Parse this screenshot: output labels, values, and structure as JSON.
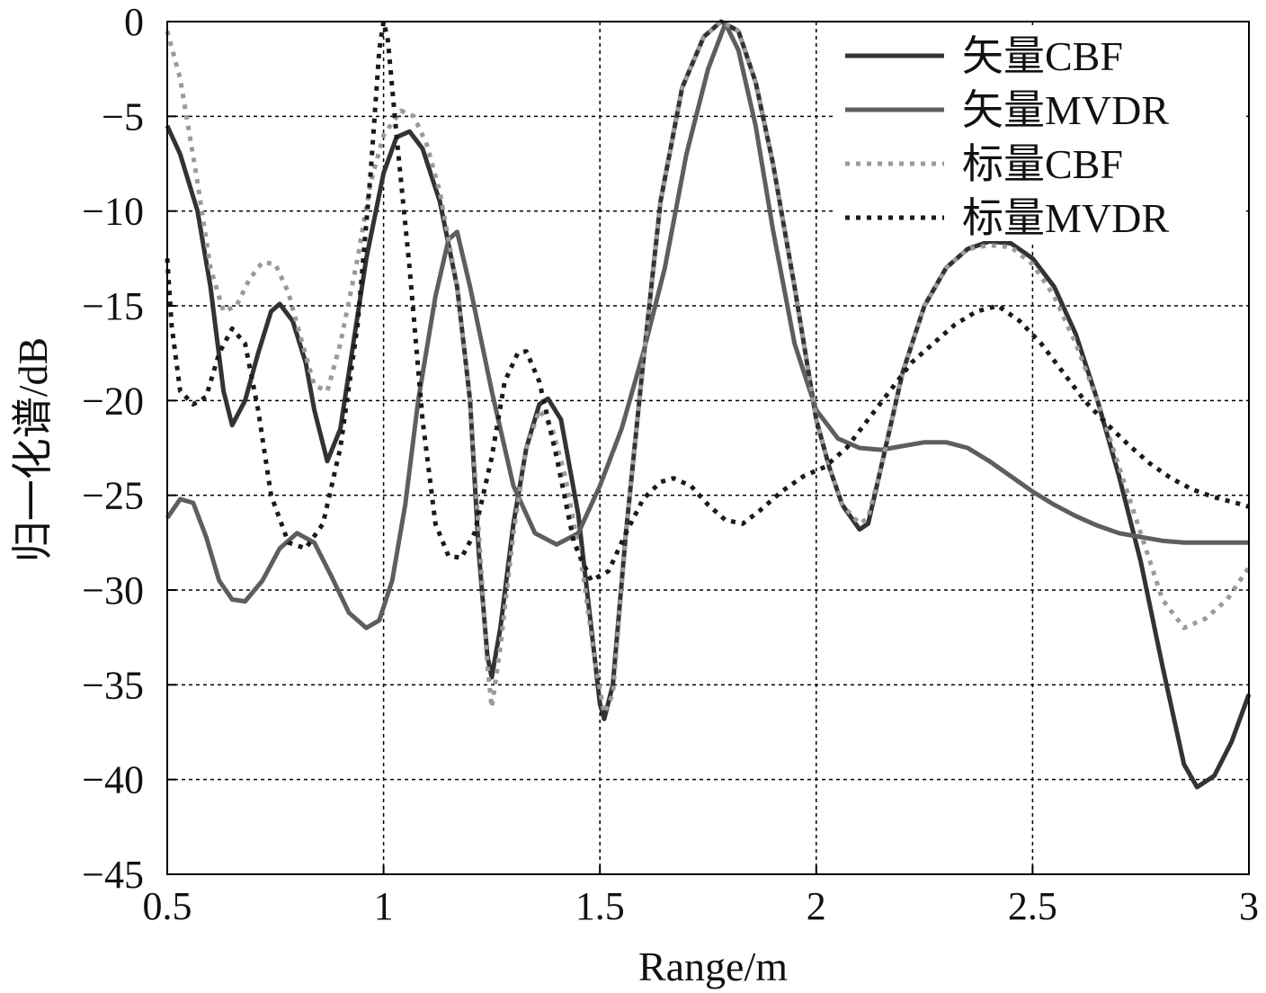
{
  "chart_data": {
    "type": "line",
    "title": "",
    "xlabel": "Range/m",
    "ylabel": "归一化谱/dB",
    "xlim": [
      0.5,
      3
    ],
    "ylim": [
      -45,
      0
    ],
    "xticks": [
      0.5,
      1,
      1.5,
      2,
      2.5,
      3
    ],
    "xtick_labels": [
      "0.5",
      "1",
      "1.5",
      "2",
      "2.5",
      "3"
    ],
    "yticks": [
      0,
      -5,
      -10,
      -15,
      -20,
      -25,
      -30,
      -35,
      -40,
      -45
    ],
    "ytick_labels": [
      "0",
      "−5",
      "−10",
      "−15",
      "−20",
      "−25",
      "−30",
      "−35",
      "−40",
      "−45"
    ],
    "grid": true,
    "legend_position": "top-right",
    "series": [
      {
        "name": "矢量CBF",
        "color": "#333333",
        "dash": "solid",
        "points": [
          [
            0.5,
            -5.5
          ],
          [
            0.53,
            -7
          ],
          [
            0.57,
            -10
          ],
          [
            0.6,
            -14
          ],
          [
            0.63,
            -19.5
          ],
          [
            0.65,
            -21.3
          ],
          [
            0.68,
            -20
          ],
          [
            0.71,
            -17.5
          ],
          [
            0.74,
            -15.3
          ],
          [
            0.76,
            -14.9
          ],
          [
            0.79,
            -15.8
          ],
          [
            0.82,
            -18
          ],
          [
            0.84,
            -20.5
          ],
          [
            0.87,
            -23.2
          ],
          [
            0.9,
            -21.5
          ],
          [
            0.93,
            -17
          ],
          [
            0.96,
            -12.5
          ],
          [
            1.0,
            -8
          ],
          [
            1.03,
            -6.1
          ],
          [
            1.06,
            -5.8
          ],
          [
            1.09,
            -6.7
          ],
          [
            1.13,
            -9.5
          ],
          [
            1.17,
            -14
          ],
          [
            1.2,
            -20
          ],
          [
            1.22,
            -28
          ],
          [
            1.24,
            -33.5
          ],
          [
            1.25,
            -34.6
          ],
          [
            1.27,
            -32
          ],
          [
            1.3,
            -26.5
          ],
          [
            1.33,
            -22.5
          ],
          [
            1.36,
            -20.2
          ],
          [
            1.38,
            -19.9
          ],
          [
            1.41,
            -21
          ],
          [
            1.45,
            -26
          ],
          [
            1.48,
            -32
          ],
          [
            1.5,
            -36
          ],
          [
            1.51,
            -36.8
          ],
          [
            1.53,
            -35
          ],
          [
            1.56,
            -27
          ],
          [
            1.6,
            -18
          ],
          [
            1.64,
            -9.5
          ],
          [
            1.69,
            -3.5
          ],
          [
            1.74,
            -0.8
          ],
          [
            1.78,
            0
          ],
          [
            1.82,
            -0.5
          ],
          [
            1.86,
            -3.2
          ],
          [
            1.9,
            -7.5
          ],
          [
            1.95,
            -14
          ],
          [
            2.0,
            -21
          ],
          [
            2.03,
            -23.5
          ],
          [
            2.06,
            -25.5
          ],
          [
            2.1,
            -26.8
          ],
          [
            2.12,
            -26.5
          ],
          [
            2.15,
            -23.5
          ],
          [
            2.2,
            -18.5
          ],
          [
            2.25,
            -15
          ],
          [
            2.3,
            -13
          ],
          [
            2.35,
            -12
          ],
          [
            2.4,
            -11.6
          ],
          [
            2.45,
            -11.7
          ],
          [
            2.5,
            -12.5
          ],
          [
            2.55,
            -14
          ],
          [
            2.6,
            -16.5
          ],
          [
            2.65,
            -20
          ],
          [
            2.7,
            -24
          ],
          [
            2.75,
            -28.5
          ],
          [
            2.8,
            -34
          ],
          [
            2.85,
            -39.2
          ],
          [
            2.88,
            -40.4
          ],
          [
            2.92,
            -39.8
          ],
          [
            2.96,
            -38
          ],
          [
            3.0,
            -35.5
          ]
        ]
      },
      {
        "name": "矢量MVDR",
        "color": "#5e5e5e",
        "dash": "solid",
        "points": [
          [
            0.5,
            -26.2
          ],
          [
            0.53,
            -25.2
          ],
          [
            0.56,
            -25.4
          ],
          [
            0.59,
            -27.2
          ],
          [
            0.62,
            -29.5
          ],
          [
            0.65,
            -30.5
          ],
          [
            0.68,
            -30.6
          ],
          [
            0.72,
            -29.5
          ],
          [
            0.76,
            -27.8
          ],
          [
            0.8,
            -27
          ],
          [
            0.84,
            -27.5
          ],
          [
            0.88,
            -29.3
          ],
          [
            0.92,
            -31.2
          ],
          [
            0.96,
            -32
          ],
          [
            0.99,
            -31.6
          ],
          [
            1.02,
            -29.5
          ],
          [
            1.05,
            -25.5
          ],
          [
            1.08,
            -20
          ],
          [
            1.12,
            -14.5
          ],
          [
            1.15,
            -11.5
          ],
          [
            1.17,
            -11.1
          ],
          [
            1.2,
            -14
          ],
          [
            1.25,
            -19.5
          ],
          [
            1.3,
            -24.5
          ],
          [
            1.35,
            -27
          ],
          [
            1.4,
            -27.6
          ],
          [
            1.45,
            -27
          ],
          [
            1.5,
            -24.5
          ],
          [
            1.55,
            -21.5
          ],
          [
            1.6,
            -17.5
          ],
          [
            1.65,
            -13
          ],
          [
            1.7,
            -7
          ],
          [
            1.75,
            -2.5
          ],
          [
            1.79,
            -0.1
          ],
          [
            1.82,
            -1.5
          ],
          [
            1.86,
            -5.5
          ],
          [
            1.9,
            -11
          ],
          [
            1.95,
            -17
          ],
          [
            2.0,
            -20.5
          ],
          [
            2.05,
            -22
          ],
          [
            2.1,
            -22.5
          ],
          [
            2.15,
            -22.6
          ],
          [
            2.2,
            -22.4
          ],
          [
            2.25,
            -22.2
          ],
          [
            2.3,
            -22.2
          ],
          [
            2.35,
            -22.5
          ],
          [
            2.4,
            -23.2
          ],
          [
            2.45,
            -24
          ],
          [
            2.5,
            -24.8
          ],
          [
            2.55,
            -25.5
          ],
          [
            2.6,
            -26.1
          ],
          [
            2.65,
            -26.6
          ],
          [
            2.7,
            -27
          ],
          [
            2.75,
            -27.2
          ],
          [
            2.8,
            -27.4
          ],
          [
            2.85,
            -27.5
          ],
          [
            2.9,
            -27.5
          ],
          [
            2.95,
            -27.5
          ],
          [
            3.0,
            -27.5
          ]
        ]
      },
      {
        "name": "标量CBF",
        "color": "#9a9a9a",
        "dash": "dotted",
        "points": [
          [
            0.5,
            -0.5
          ],
          [
            0.53,
            -3
          ],
          [
            0.57,
            -8.5
          ],
          [
            0.6,
            -13
          ],
          [
            0.63,
            -15.3
          ],
          [
            0.66,
            -15
          ],
          [
            0.69,
            -13.6
          ],
          [
            0.72,
            -12.7
          ],
          [
            0.75,
            -12.8
          ],
          [
            0.78,
            -14.3
          ],
          [
            0.81,
            -16.8
          ],
          [
            0.84,
            -19.2
          ],
          [
            0.87,
            -19.5
          ],
          [
            0.9,
            -17
          ],
          [
            0.94,
            -12.5
          ],
          [
            0.97,
            -8.5
          ],
          [
            1.0,
            -6
          ],
          [
            1.04,
            -4.7
          ],
          [
            1.07,
            -5
          ],
          [
            1.1,
            -6.5
          ],
          [
            1.13,
            -9
          ],
          [
            1.17,
            -14
          ],
          [
            1.2,
            -20
          ],
          [
            1.22,
            -27
          ],
          [
            1.24,
            -34
          ],
          [
            1.25,
            -36.2
          ],
          [
            1.27,
            -33
          ],
          [
            1.3,
            -27
          ],
          [
            1.33,
            -22.5
          ],
          [
            1.36,
            -20.5
          ],
          [
            1.39,
            -21.5
          ],
          [
            1.42,
            -24
          ],
          [
            1.46,
            -29
          ],
          [
            1.49,
            -34
          ],
          [
            1.51,
            -36.5
          ],
          [
            1.53,
            -35.5
          ],
          [
            1.56,
            -27
          ],
          [
            1.6,
            -18
          ],
          [
            1.64,
            -9.5
          ],
          [
            1.69,
            -3.5
          ],
          [
            1.74,
            -0.8
          ],
          [
            1.78,
            0
          ],
          [
            1.82,
            -0.5
          ],
          [
            1.86,
            -3.2
          ],
          [
            1.9,
            -7.5
          ],
          [
            1.95,
            -14
          ],
          [
            2.0,
            -21
          ],
          [
            2.03,
            -23.5
          ],
          [
            2.06,
            -25.5
          ],
          [
            2.1,
            -26.5
          ],
          [
            2.12,
            -26.2
          ],
          [
            2.15,
            -23.5
          ],
          [
            2.2,
            -18.5
          ],
          [
            2.25,
            -15
          ],
          [
            2.3,
            -13
          ],
          [
            2.35,
            -12
          ],
          [
            2.4,
            -11.8
          ],
          [
            2.45,
            -11.9
          ],
          [
            2.5,
            -12.8
          ],
          [
            2.55,
            -14.5
          ],
          [
            2.6,
            -17
          ],
          [
            2.65,
            -20
          ],
          [
            2.7,
            -23.5
          ],
          [
            2.75,
            -27
          ],
          [
            2.8,
            -30.5
          ],
          [
            2.85,
            -32
          ],
          [
            2.9,
            -31.5
          ],
          [
            2.95,
            -30.5
          ],
          [
            3.0,
            -28.8
          ]
        ]
      },
      {
        "name": "标量MVDR",
        "color": "#1a1a1a",
        "dash": "dotted",
        "points": [
          [
            0.5,
            -12.5
          ],
          [
            0.51,
            -16
          ],
          [
            0.53,
            -19.5
          ],
          [
            0.56,
            -20.2
          ],
          [
            0.59,
            -19.8
          ],
          [
            0.62,
            -17.5
          ],
          [
            0.65,
            -16.2
          ],
          [
            0.68,
            -17
          ],
          [
            0.71,
            -20.5
          ],
          [
            0.74,
            -25
          ],
          [
            0.78,
            -27.5
          ],
          [
            0.82,
            -27.8
          ],
          [
            0.86,
            -26.5
          ],
          [
            0.9,
            -22.5
          ],
          [
            0.94,
            -16
          ],
          [
            0.97,
            -8
          ],
          [
            0.99,
            -1.5
          ],
          [
            1.0,
            0
          ],
          [
            1.01,
            -1
          ],
          [
            1.03,
            -6
          ],
          [
            1.06,
            -13
          ],
          [
            1.09,
            -21
          ],
          [
            1.12,
            -26.5
          ],
          [
            1.15,
            -28.2
          ],
          [
            1.18,
            -28.3
          ],
          [
            1.21,
            -27
          ],
          [
            1.25,
            -23
          ],
          [
            1.28,
            -19
          ],
          [
            1.31,
            -17.5
          ],
          [
            1.33,
            -17.4
          ],
          [
            1.36,
            -19
          ],
          [
            1.4,
            -23
          ],
          [
            1.44,
            -27.5
          ],
          [
            1.48,
            -29.5
          ],
          [
            1.52,
            -29
          ],
          [
            1.56,
            -27
          ],
          [
            1.6,
            -25.2
          ],
          [
            1.64,
            -24.3
          ],
          [
            1.67,
            -24.1
          ],
          [
            1.71,
            -24.5
          ],
          [
            1.75,
            -25.5
          ],
          [
            1.79,
            -26.3
          ],
          [
            1.83,
            -26.5
          ],
          [
            1.87,
            -25.8
          ],
          [
            1.92,
            -24.8
          ],
          [
            1.97,
            -24
          ],
          [
            2.02,
            -23.5
          ],
          [
            2.07,
            -22.5
          ],
          [
            2.12,
            -21
          ],
          [
            2.17,
            -19.5
          ],
          [
            2.22,
            -18
          ],
          [
            2.27,
            -17
          ],
          [
            2.32,
            -16
          ],
          [
            2.37,
            -15.3
          ],
          [
            2.42,
            -15
          ],
          [
            2.47,
            -15.8
          ],
          [
            2.52,
            -17
          ],
          [
            2.57,
            -18.5
          ],
          [
            2.62,
            -20
          ],
          [
            2.67,
            -21.2
          ],
          [
            2.72,
            -22.3
          ],
          [
            2.77,
            -23.3
          ],
          [
            2.82,
            -24.1
          ],
          [
            2.87,
            -24.7
          ],
          [
            2.92,
            -25.1
          ],
          [
            2.97,
            -25.4
          ],
          [
            3.0,
            -25.6
          ]
        ]
      }
    ]
  }
}
